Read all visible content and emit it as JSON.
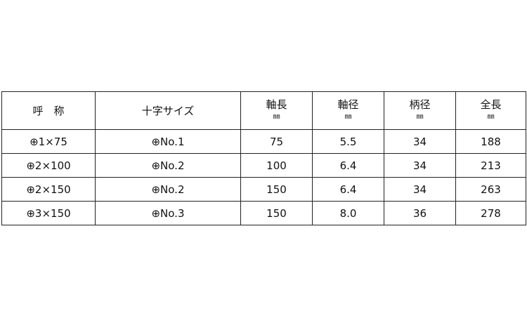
{
  "headers": [
    {
      "label": "呼　称",
      "unit": ""
    },
    {
      "label": "十字サイズ",
      "unit": ""
    },
    {
      "label": "軸長",
      "unit": "㎜"
    },
    {
      "label": "軸径",
      "unit": "㎜"
    },
    {
      "label": "柄径",
      "unit": "㎜"
    },
    {
      "label": "全長",
      "unit": "㎜"
    }
  ],
  "rows": [
    [
      "⊕1×75",
      "⊕No.1",
      "75",
      "5.5",
      "34",
      "188"
    ],
    [
      "⊕2×100",
      "⊕No.2",
      "100",
      "6.4",
      "34",
      "213"
    ],
    [
      "⊕2×150",
      "⊕No.2",
      "150",
      "6.4",
      "34",
      "263"
    ],
    [
      "⊕3×150",
      "⊕No.3",
      "150",
      "8.0",
      "36",
      "278"
    ]
  ]
}
